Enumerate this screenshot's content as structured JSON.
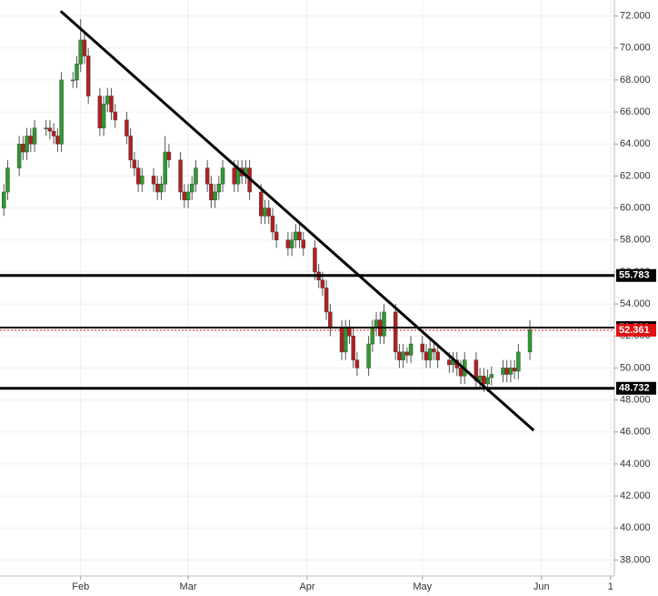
{
  "chart_data": {
    "type": "candlestick",
    "x": [
      12,
      13,
      16,
      17,
      18,
      19,
      20,
      23,
      24,
      25,
      26,
      27,
      30,
      31,
      32,
      33,
      34,
      37,
      38,
      39,
      40,
      41,
      44,
      45,
      46,
      47,
      48,
      51,
      52,
      53,
      54,
      55,
      58,
      59,
      60,
      61,
      62,
      65,
      66,
      67,
      68,
      69,
      72,
      73,
      74,
      75,
      76,
      79,
      80,
      81,
      82,
      83,
      86,
      87,
      88,
      89,
      90,
      93,
      94,
      95,
      96,
      97,
      100,
      101,
      102,
      103,
      104,
      107,
      108,
      109,
      110,
      111,
      114,
      115,
      116,
      117,
      118,
      121,
      122,
      123,
      124,
      125,
      128,
      129,
      130,
      131,
      132,
      135,
      136,
      137,
      138,
      139,
      142,
      143,
      144,
      145,
      146,
      149
    ],
    "open": [
      60,
      61,
      62.5,
      64,
      63.5,
      64.5,
      64,
      65,
      65,
      64.8,
      64.5,
      64,
      68,
      68,
      69,
      70.5,
      69.5,
      67,
      65,
      66.5,
      67,
      66,
      65.5,
      64.5,
      63,
      62.5,
      61.5,
      62,
      61.5,
      61,
      61.5,
      63.5,
      63,
      61,
      60.5,
      61,
      61.5,
      62.5,
      61.5,
      60.5,
      61,
      61.5,
      62.5,
      61.5,
      62.5,
      62,
      62.5,
      61,
      59.5,
      60,
      59.5,
      58.5,
      58,
      57.5,
      58,
      58.5,
      58,
      57.5,
      56,
      55.5,
      55,
      53.5,
      52.5,
      51,
      52.5,
      52,
      50.5,
      50,
      51.5,
      52.5,
      53,
      52,
      53.5,
      51,
      50.5,
      51,
      50.8,
      51.5,
      51,
      50.5,
      51.2,
      51,
      50.5,
      50.2,
      50.5,
      50,
      49.5,
      50.5,
      49.2,
      49.5,
      49,
      49.4,
      49.6,
      50,
      49.6,
      50,
      49.8,
      51
    ],
    "high": [
      61.5,
      63,
      64.5,
      64.5,
      65,
      65,
      65.5,
      65.5,
      65.5,
      65.3,
      65,
      68.5,
      68.5,
      69.5,
      71.8,
      71,
      70,
      67.5,
      67,
      67.5,
      67.5,
      66.5,
      66,
      65,
      63.5,
      63,
      62.5,
      62.5,
      62,
      62,
      64.5,
      64,
      63.5,
      61.5,
      61.5,
      62,
      63,
      63,
      62,
      61.5,
      62,
      63,
      63,
      63,
      63,
      63,
      63,
      61.5,
      60.5,
      60.5,
      60,
      59,
      58.5,
      58.5,
      59,
      59,
      58.5,
      58,
      56.5,
      56,
      55.5,
      54,
      53,
      53,
      53,
      52.5,
      51,
      52,
      53,
      53.5,
      53.5,
      54,
      54,
      51.5,
      51.5,
      51.3,
      52,
      52,
      51.5,
      51.7,
      51.7,
      51.5,
      51,
      51,
      51,
      50.5,
      51,
      51,
      50,
      50,
      49.9,
      50.1,
      50.5,
      50.5,
      50.5,
      50.5,
      51.5,
      53
    ],
    "low": [
      59.5,
      60.5,
      62,
      63,
      63,
      63.5,
      63.5,
      64.5,
      64.3,
      64,
      63.5,
      63.5,
      67.5,
      67.5,
      68.5,
      69,
      66.5,
      64.5,
      64.5,
      66,
      65.5,
      65,
      64,
      62.5,
      62,
      61,
      61,
      61,
      60.5,
      60.5,
      61,
      62.5,
      60.5,
      60,
      60,
      60.5,
      61,
      61,
      60,
      60,
      60.5,
      61,
      61,
      61,
      61.5,
      61.5,
      60.5,
      59,
      59,
      59,
      58,
      57.5,
      57,
      57,
      57.5,
      57.5,
      57,
      55.5,
      55,
      54.5,
      53,
      52,
      50.5,
      50.5,
      51.5,
      50,
      49.5,
      49.5,
      51,
      52,
      51.5,
      51.5,
      50.5,
      50,
      50,
      50.3,
      50.3,
      50.5,
      50,
      50,
      50.5,
      50,
      49.7,
      49.7,
      49.5,
      49,
      49,
      48.7,
      48.7,
      48.5,
      48.5,
      48.9,
      49.1,
      49.1,
      49.1,
      49.3,
      49.3,
      50.5
    ],
    "close": [
      61,
      62.5,
      64,
      63.5,
      64.5,
      64,
      65,
      65,
      64.8,
      64.5,
      64,
      68,
      68,
      69,
      70.5,
      69.5,
      67,
      65,
      66.5,
      67,
      66,
      65.5,
      64.5,
      63,
      62.5,
      61.5,
      62,
      61.5,
      61,
      61.5,
      63.5,
      63,
      61,
      60.5,
      61,
      61.5,
      62.5,
      61.5,
      60.5,
      61,
      61.5,
      62.5,
      61.5,
      62.5,
      62,
      62.5,
      61,
      59.5,
      60,
      59.5,
      58.5,
      58,
      57.5,
      58,
      58.5,
      58,
      57.5,
      56,
      55.5,
      55,
      53.5,
      52.5,
      51,
      52.5,
      52,
      50.5,
      50,
      51.5,
      52.5,
      53,
      52,
      53.5,
      51,
      50.5,
      51,
      50.8,
      51.5,
      51,
      50.5,
      51.2,
      51,
      50.5,
      50.2,
      50.5,
      50,
      49.5,
      50.5,
      49.2,
      49.5,
      49,
      49.4,
      49.6,
      50,
      49.6,
      50,
      49.8,
      51,
      52.4
    ],
    "up_color": "#2e9a2e",
    "down_color": "#b51e1e",
    "xlim": [
      11,
      171
    ],
    "ylim": [
      37,
      73
    ],
    "xticks": [
      {
        "value": 32,
        "label": "Feb"
      },
      {
        "value": 60,
        "label": "Mar"
      },
      {
        "value": 91,
        "label": "Apr"
      },
      {
        "value": 121,
        "label": "May"
      },
      {
        "value": 152,
        "label": "Jun"
      },
      {
        "value": 170,
        "label": "1"
      }
    ],
    "yticks": [
      {
        "value": 38,
        "label": "38.000"
      },
      {
        "value": 40,
        "label": "40.000"
      },
      {
        "value": 42,
        "label": "42.000"
      },
      {
        "value": 44,
        "label": "44.000"
      },
      {
        "value": 46,
        "label": "46.000"
      },
      {
        "value": 48,
        "label": "48.000"
      },
      {
        "value": 50,
        "label": "50.000"
      },
      {
        "value": 52,
        "label": "52.000"
      },
      {
        "value": 54,
        "label": "54.000"
      },
      {
        "value": 56,
        "label": "56.000"
      },
      {
        "value": 58,
        "label": "58.000"
      },
      {
        "value": 60,
        "label": "60.000"
      },
      {
        "value": 62,
        "label": "62.000"
      },
      {
        "value": 64,
        "label": "64.000"
      },
      {
        "value": 66,
        "label": "66.000"
      },
      {
        "value": 68,
        "label": "68.000"
      },
      {
        "value": 70,
        "label": "70.000"
      },
      {
        "value": 72,
        "label": "72.000"
      }
    ],
    "grid": true,
    "levels": [
      {
        "value": 55.783,
        "color": "#000000",
        "style": "solid",
        "width": 3
      },
      {
        "value": 52.523,
        "color": "#000000",
        "style": "solid",
        "width": 2
      },
      {
        "value": 52.361,
        "color": "#e01010",
        "style": "dotted",
        "width": 1
      },
      {
        "value": 48.732,
        "color": "#000000",
        "style": "solid",
        "width": 3
      }
    ],
    "trendline": {
      "x": [
        26.8,
        150
      ],
      "y": [
        72.3,
        46.1
      ],
      "color": "#000000"
    }
  }
}
